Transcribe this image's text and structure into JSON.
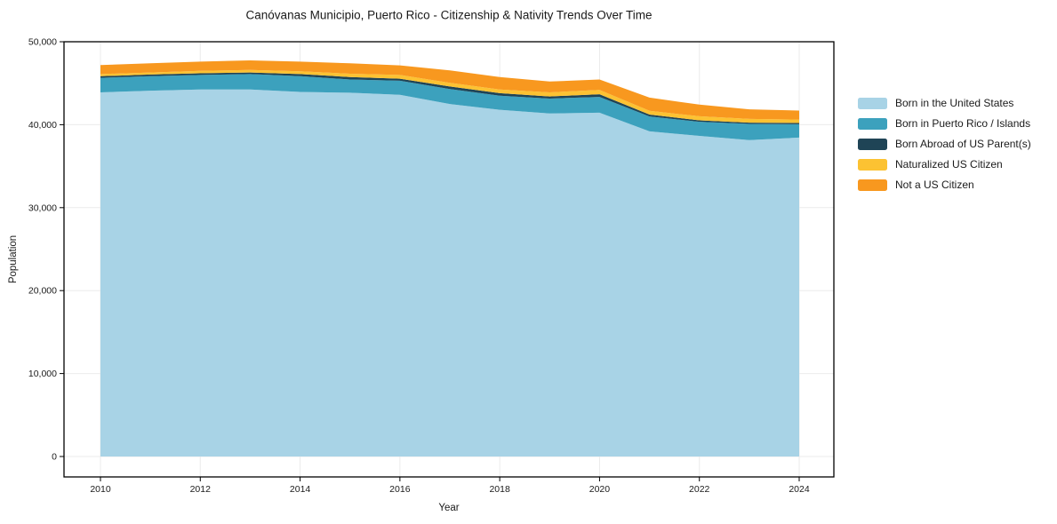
{
  "chart": {
    "title": "Canóvanas Municipio, Puerto Rico - Citizenship & Nativity Trends Over Time",
    "xlabel": "Year",
    "ylabel": "Population"
  },
  "chart_data": {
    "type": "area",
    "stacked": true,
    "title": "Canóvanas Municipio, Puerto Rico - Citizenship & Nativity Trends Over Time",
    "xlabel": "Year",
    "ylabel": "Population",
    "grid": true,
    "legend_position": "right-outside",
    "xlim": [
      2010,
      2024
    ],
    "ylim": [
      0,
      50000
    ],
    "xticks": [
      2010,
      2012,
      2014,
      2016,
      2018,
      2020,
      2022,
      2024
    ],
    "yticks": [
      0,
      10000,
      20000,
      30000,
      40000,
      50000
    ],
    "ytick_labels": [
      "0",
      "10,000",
      "20,000",
      "30,000",
      "40,000",
      "50,000"
    ],
    "x": [
      2010,
      2011,
      2012,
      2013,
      2014,
      2015,
      2016,
      2017,
      2018,
      2019,
      2020,
      2021,
      2022,
      2023,
      2024
    ],
    "series": [
      {
        "name": "Born in the United States",
        "color": "#a8d3e6",
        "values": [
          43900,
          44100,
          44250,
          44250,
          43950,
          43850,
          43600,
          42500,
          41800,
          41350,
          41450,
          39200,
          38650,
          38150,
          38450
        ]
      },
      {
        "name": "Born in Puerto Rico / Islands",
        "color": "#3ca1bd",
        "values": [
          1750,
          1750,
          1750,
          1850,
          1900,
          1600,
          1700,
          1800,
          1700,
          1800,
          1900,
          1800,
          1700,
          1950,
          1600
        ]
      },
      {
        "name": "Born Abroad of US Parent(s)",
        "color": "#1f4456",
        "values": [
          200,
          200,
          200,
          200,
          250,
          300,
          250,
          300,
          300,
          250,
          320,
          220,
          170,
          150,
          150
        ]
      },
      {
        "name": "Naturalized US Citizen",
        "color": "#fcc232",
        "values": [
          250,
          250,
          300,
          300,
          350,
          400,
          450,
          450,
          450,
          500,
          530,
          450,
          500,
          450,
          420
        ]
      },
      {
        "name": "Not a US Citizen",
        "color": "#f8981f",
        "values": [
          1100,
          1100,
          1100,
          1150,
          1150,
          1250,
          1150,
          1500,
          1500,
          1300,
          1250,
          1600,
          1400,
          1150,
          1080
        ]
      }
    ]
  },
  "style": {
    "grid_color": "#ebebeb",
    "spine_color": "#000000",
    "text_color": "#1a1a1a",
    "background": "#ffffff"
  }
}
